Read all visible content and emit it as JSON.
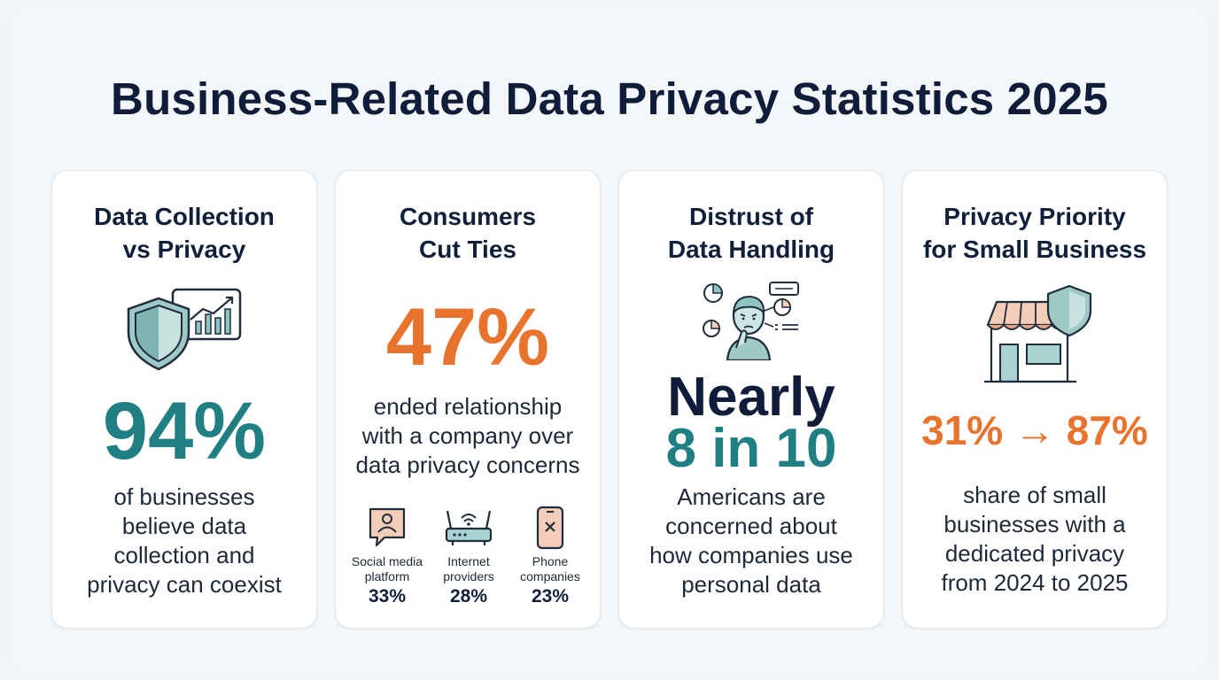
{
  "page": {
    "title": "Business-Related Data Privacy Statistics 2025"
  },
  "colors": {
    "teal": "#1f7f83",
    "orange": "#e8732d",
    "navy": "#0f1d3a"
  },
  "cards": [
    {
      "title_lines": [
        "Data Collection",
        "vs Privacy"
      ],
      "icon": "shield-chart-icon",
      "stat": "94%",
      "desc_lines": [
        "of businesses",
        "believe data",
        "collection and",
        "privacy can coexist"
      ]
    },
    {
      "title_lines": [
        "Consumers",
        "Cut Ties"
      ],
      "stat": "47%",
      "desc_lines": [
        "ended relationship",
        "with a company over",
        "data privacy concerns"
      ],
      "breakdown": [
        {
          "icon": "chat-user-icon",
          "label_lines": [
            "Social media",
            "platform"
          ],
          "value": "33%"
        },
        {
          "icon": "router-icon",
          "label_lines": [
            "Internet",
            "providers"
          ],
          "value": "28%"
        },
        {
          "icon": "phone-icon",
          "label_lines": [
            "Phone",
            "companies"
          ],
          "value": "23%"
        }
      ]
    },
    {
      "title_lines": [
        "Distrust of",
        "Data Handling"
      ],
      "icon": "worried-person-icon",
      "stat_lines": [
        "Nearly",
        "8 in 10"
      ],
      "desc_lines": [
        "Americans are",
        "concerned about",
        "how companies use",
        "personal data"
      ]
    },
    {
      "title_lines": [
        "Privacy Priority",
        "for Small Business"
      ],
      "icon": "store-shield-icon",
      "stat": "31% → 87%",
      "desc_lines": [
        "share of small",
        "businesses with a",
        "dedicated privacy",
        "from 2024 to 2025"
      ]
    }
  ]
}
